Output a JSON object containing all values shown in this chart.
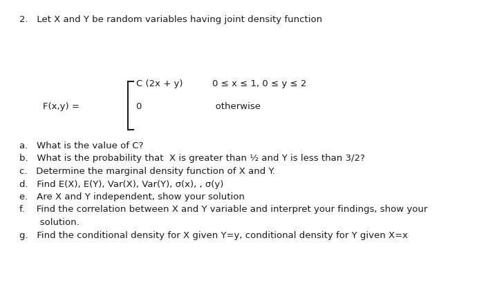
{
  "background_color": "#ffffff",
  "text_color": "#1a1a1a",
  "title_line": "2.   Let X and Y be random variables having joint density function",
  "piecewise_line1": "C (2x + y)          0 ≤ x ≤ 1, 0 ≤ y ≤ 2",
  "piecewise_line2": "0                         otherwise",
  "fxy_label": "F(x,y) =",
  "q_a": "a.   What is the value of C?",
  "q_b": "b.   What is the probability that  X is greater than ½ and Y is less than 3/2?",
  "q_c": "c.   Determine the marginal density function of X and Y.",
  "q_d": "d.   Find E(X), E(Y), Var(X), Var(Y), σ(x), , σ(y)",
  "q_e": "e.   Are X and Y independent, show your solution",
  "q_f1": "f.    Find the correlation between X and Y variable and interpret your findings, show your",
  "q_f2": "       solution.",
  "q_g": "g.   Find the conditional density for X given Y=y, conditional density for Y given X=x",
  "fontsize": 9.5,
  "title_fontsize": 9.5
}
